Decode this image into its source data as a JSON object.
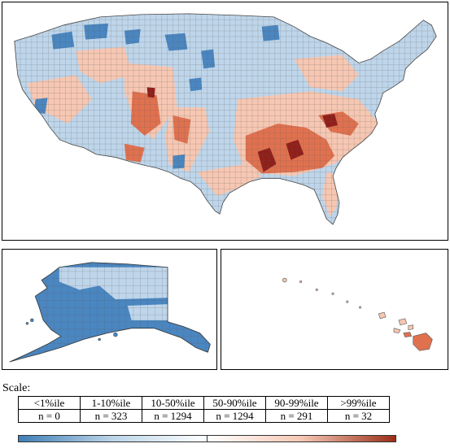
{
  "scale_label": "Scale:",
  "legend": {
    "bins": [
      {
        "label": "<1%ile",
        "count": "n = 0"
      },
      {
        "label": "1-10%ile",
        "count": "n = 323"
      },
      {
        "label": "10-50%ile",
        "count": "n = 1294"
      },
      {
        "label": "50-90%ile",
        "count": "n = 1294"
      },
      {
        "label": "90-99%ile",
        "count": "n = 291"
      },
      {
        "label": ">99%ile",
        "count": "n = 32"
      }
    ],
    "gradient_colors": [
      "#3f7fb7",
      "#bcd5e8",
      "#ffffff",
      "#f5c7b4",
      "#9a2e18"
    ]
  },
  "map": {
    "colors": {
      "dark_blue": "#4a86c0",
      "light_blue": "#bed5ea",
      "light_red": "#f6c7b2",
      "mid_red": "#e0714f",
      "dark_red": "#8f1f1a"
    },
    "panels": [
      "contiguous-us",
      "alaska",
      "hawaii"
    ]
  }
}
